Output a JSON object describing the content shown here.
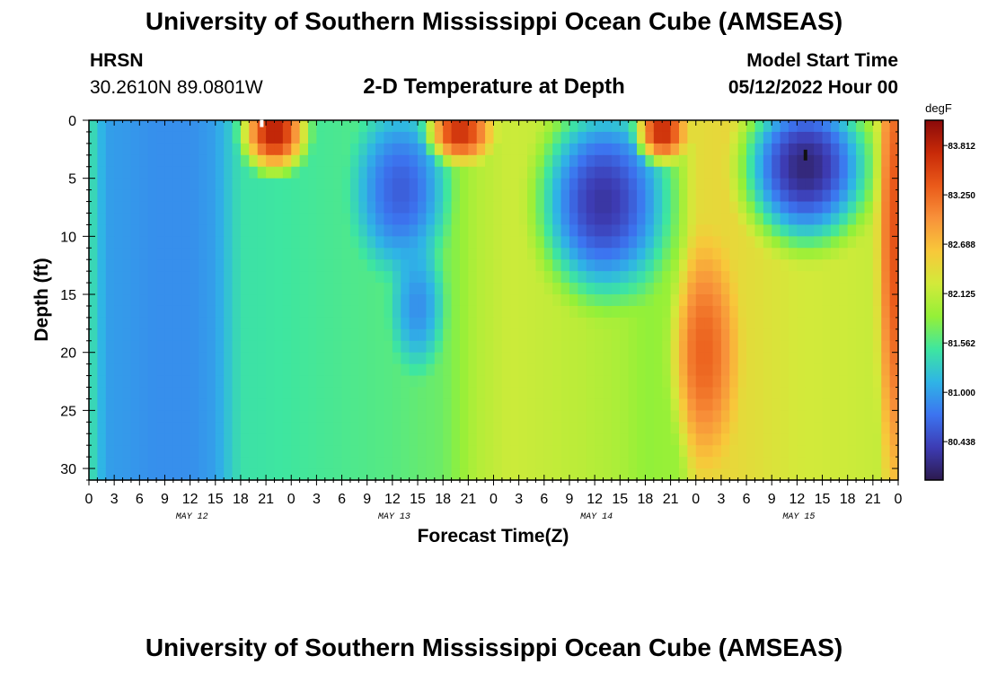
{
  "header": {
    "title": "University of Southern Mississippi Ocean Cube (AMSEAS)",
    "station": "HRSN",
    "coordinates": "30.2610N  89.0801W",
    "subtitle": "2-D Temperature at Depth",
    "start_label": "Model Start Time",
    "start_value": "05/12/2022 Hour 00"
  },
  "footer": {
    "title": "University of Southern Mississippi Ocean Cube (AMSEAS)"
  },
  "chart_data": {
    "type": "heatmap",
    "title": "2-D Temperature at Depth",
    "xlabel": "Forecast Time(Z)",
    "ylabel": "Depth (ft)",
    "xlim": [
      0,
      96
    ],
    "ylim": [
      31,
      0
    ],
    "x_tick_values": [
      0,
      3,
      6,
      9,
      12,
      15,
      18,
      21,
      24,
      27,
      30,
      33,
      36,
      39,
      42,
      45,
      48,
      51,
      54,
      57,
      60,
      63,
      66,
      69,
      72,
      75,
      78,
      81,
      84,
      87,
      90,
      93,
      96
    ],
    "x_tick_labels": [
      "0",
      "3",
      "6",
      "9",
      "12",
      "15",
      "18",
      "21",
      "0",
      "3",
      "6",
      "9",
      "12",
      "15",
      "18",
      "21",
      "0",
      "3",
      "6",
      "9",
      "12",
      "15",
      "18",
      "21",
      "0",
      "3",
      "6",
      "9",
      "12",
      "15",
      "18",
      "21",
      "0"
    ],
    "day_labels": [
      {
        "label": "MAY 12",
        "hour": 12
      },
      {
        "label": "MAY 13",
        "hour": 36
      },
      {
        "label": "MAY 14",
        "hour": 60
      },
      {
        "label": "MAY 15",
        "hour": 84
      }
    ],
    "y_tick_values": [
      0,
      5,
      10,
      15,
      20,
      25,
      30
    ],
    "y_tick_labels": [
      "0",
      "5",
      "10",
      "15",
      "20",
      "25",
      "30"
    ],
    "colorbar": {
      "unit": "degF",
      "min": 80.0,
      "max": 84.1,
      "tick_values": [
        83.812,
        83.25,
        82.688,
        82.125,
        81.562,
        81.0,
        80.438
      ],
      "tick_labels": [
        "83.812",
        "83.250",
        "82.688",
        "82.125",
        "81.562",
        "81.000",
        "80.438"
      ],
      "colormap": [
        "#2c1a4e",
        "#3d3cb4",
        "#3c74f0",
        "#2fb4e6",
        "#3ee6a0",
        "#94f038",
        "#d2ea3a",
        "#f8c83a",
        "#f8923a",
        "#ea5a1a",
        "#c82a08",
        "#8a0a0a"
      ]
    },
    "field": {
      "description": "Estimated temperature (degF) by forecast hour and depth",
      "background_profile": {
        "hours": [
          0,
          2,
          5,
          8,
          12,
          15,
          18,
          24,
          36,
          42,
          44,
          46,
          50,
          54,
          58,
          63,
          66,
          70,
          72,
          76,
          80,
          84,
          90,
          94,
          96
        ],
        "values": [
          81.5,
          81.0,
          80.95,
          80.9,
          80.9,
          81.0,
          81.45,
          81.5,
          81.6,
          81.7,
          81.85,
          82.05,
          82.2,
          82.15,
          82.1,
          82.0,
          81.85,
          81.9,
          82.4,
          82.45,
          82.35,
          82.25,
          82.2,
          82.15,
          82.3
        ]
      },
      "features": [
        {
          "name": "warm-core-may12",
          "hour_center": 22,
          "depth_center": 1,
          "hour_radius": 5,
          "depth_radius": 4.5,
          "value": 83.85
        },
        {
          "name": "cold-core-may13",
          "hour_center": 37,
          "depth_center": 6,
          "hour_radius": 7,
          "depth_radius": 9,
          "value": 80.6
        },
        {
          "name": "cold-tail-may13",
          "hour_center": 39,
          "depth_center": 16,
          "hour_radius": 4,
          "depth_radius": 7,
          "value": 80.9
        },
        {
          "name": "warm-core-may13",
          "hour_center": 44,
          "depth_center": 1,
          "hour_radius": 5,
          "depth_radius": 3.5,
          "value": 83.7
        },
        {
          "name": "cold-core-may14",
          "hour_center": 61,
          "depth_center": 7,
          "hour_radius": 10,
          "depth_radius": 11,
          "value": 80.3
        },
        {
          "name": "warm-core-may14",
          "hour_center": 68,
          "depth_center": 1,
          "hour_radius": 4,
          "depth_radius": 3.5,
          "value": 83.75
        },
        {
          "name": "warm-body-may14",
          "hour_center": 73,
          "depth_center": 20,
          "hour_radius": 5,
          "depth_radius": 12,
          "value": 83.3
        },
        {
          "name": "cold-core-may15",
          "hour_center": 85,
          "depth_center": 4,
          "hour_radius": 10,
          "depth_radius": 9,
          "value": 80.15
        },
        {
          "name": "warm-edge-may15",
          "hour_center": 95.5,
          "depth_center": 10,
          "hour_radius": 2.5,
          "depth_radius": 30,
          "value": 83.4
        }
      ]
    },
    "markers": [
      {
        "name": "surface-marker",
        "hour": 20.5,
        "depth": 0.2,
        "color": "#ffffff"
      },
      {
        "name": "cold-marker",
        "hour": 85,
        "depth": 3,
        "color": "#111111"
      }
    ]
  }
}
